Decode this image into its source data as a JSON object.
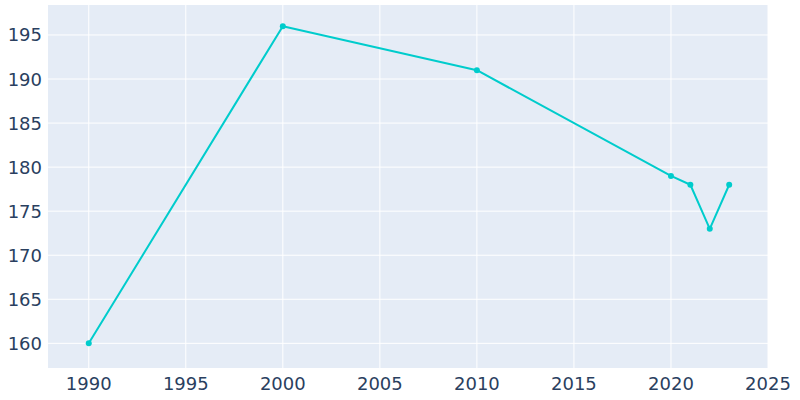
{
  "chart_data": {
    "type": "line",
    "x": [
      1990,
      2000,
      2010,
      2020,
      2021,
      2022,
      2023
    ],
    "values": [
      160,
      196,
      191,
      179,
      178,
      173,
      178
    ],
    "color": "#00cccc",
    "marker": "circle",
    "xlim": [
      1987.9,
      2025
    ],
    "xticks": [
      1990,
      1995,
      2000,
      2005,
      2010,
      2015,
      2020,
      2025
    ],
    "ylim": [
      157.2,
      198.4
    ],
    "yticks": [
      160,
      165,
      170,
      175,
      180,
      185,
      190,
      195
    ],
    "grid": true
  }
}
